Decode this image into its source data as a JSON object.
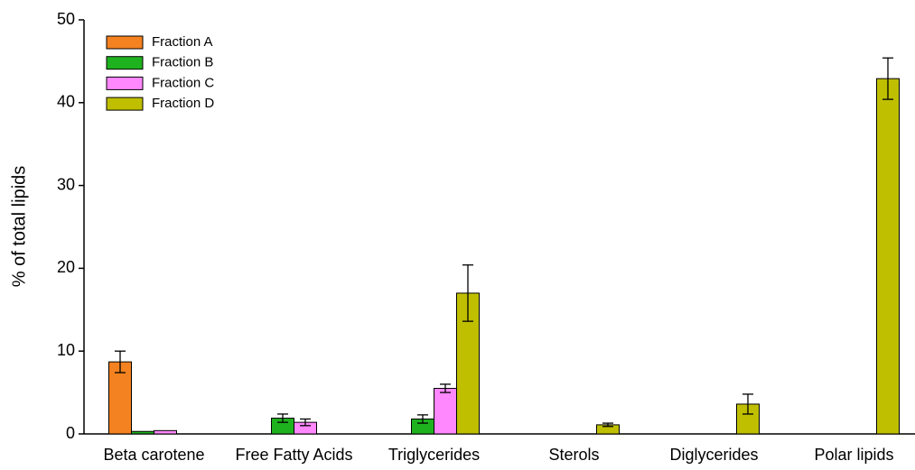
{
  "chart_data": {
    "type": "bar",
    "y_label": "% of total lipids",
    "categories": [
      "Beta carotene",
      "Free Fatty Acids",
      "Triglycerides",
      "Sterols",
      "Diglycerides",
      "Polar lipids"
    ],
    "series": [
      {
        "name": "Fraction A",
        "color": "#f58220",
        "values": [
          8.7,
          null,
          null,
          null,
          null,
          null
        ],
        "errors": [
          1.3,
          null,
          null,
          null,
          null,
          null
        ]
      },
      {
        "name": "Fraction B",
        "color": "#1fb21f",
        "values": [
          0.3,
          1.9,
          1.8,
          null,
          null,
          null
        ],
        "errors": [
          null,
          0.5,
          0.5,
          null,
          null,
          null
        ]
      },
      {
        "name": "Fraction C",
        "color": "#ff88ff",
        "values": [
          0.4,
          1.4,
          5.5,
          null,
          null,
          null
        ],
        "errors": [
          null,
          0.4,
          0.5,
          null,
          null,
          null
        ]
      },
      {
        "name": "Fraction D",
        "color": "#bfbf00",
        "values": [
          null,
          null,
          17.0,
          1.1,
          3.6,
          42.9
        ],
        "errors": [
          null,
          null,
          3.4,
          0.2,
          1.2,
          2.5
        ]
      }
    ],
    "ylim": [
      0,
      50
    ],
    "yticks": [
      0,
      10,
      20,
      30,
      40,
      50
    ],
    "legend": "upper-left"
  }
}
